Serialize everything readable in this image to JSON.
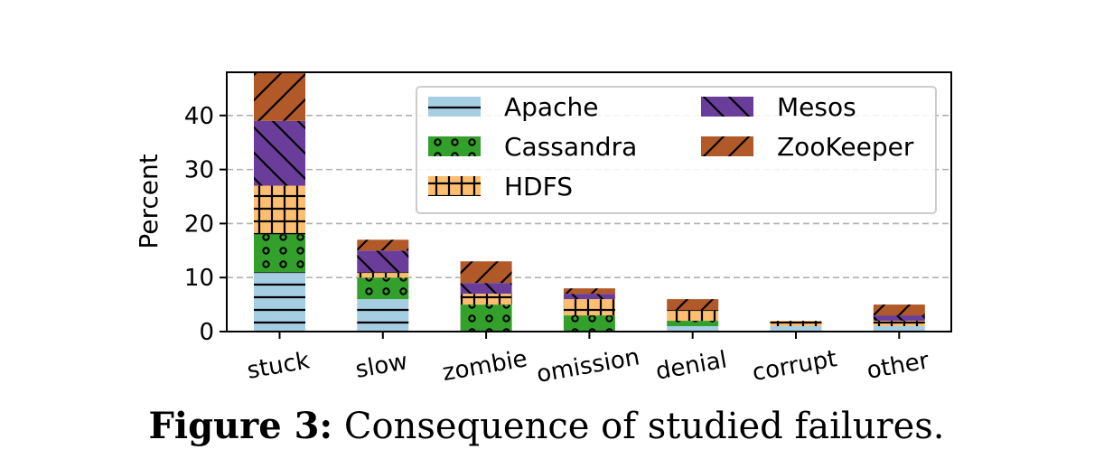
{
  "chart_data": {
    "type": "bar",
    "stacked": true,
    "categories": [
      "stuck",
      "slow",
      "zombie",
      "omission",
      "denial",
      "corrupt",
      "other"
    ],
    "series": [
      {
        "name": "Apache",
        "color": "#a6cee3",
        "hatch": "horizontal-line",
        "values": [
          11,
          6,
          0,
          0,
          1,
          1,
          1
        ]
      },
      {
        "name": "Cassandra",
        "color": "#33a02c",
        "hatch": "circles",
        "values": [
          7,
          4,
          5,
          3,
          1,
          0,
          0
        ]
      },
      {
        "name": "HDFS",
        "color": "#fdbf6f",
        "hatch": "plus",
        "values": [
          9,
          1,
          2,
          3,
          2,
          1,
          1
        ]
      },
      {
        "name": "Mesos",
        "color": "#6a3d9a",
        "hatch": "backslash",
        "values": [
          12,
          4,
          2,
          1,
          0,
          0,
          1
        ]
      },
      {
        "name": "ZooKeeper",
        "color": "#b15928",
        "hatch": "slash",
        "values": [
          9,
          2,
          4,
          1,
          2,
          0,
          2
        ]
      }
    ],
    "xlabel": "",
    "ylabel": "Percent",
    "ylim": [
      0,
      48
    ],
    "yticks": [
      0,
      10,
      20,
      30,
      40
    ],
    "grid": "y-dashed",
    "legend_placement": "top-right"
  },
  "caption": {
    "prefix": "Figure 3:",
    "text": " Consequence of studied failures."
  }
}
